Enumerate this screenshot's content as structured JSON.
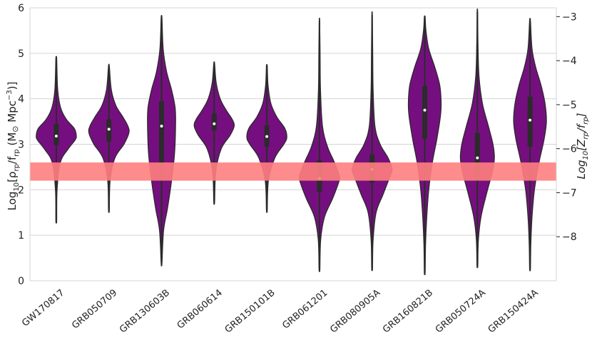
{
  "chart_data": {
    "type": "violin",
    "categories": [
      "GW170817",
      "GRB050709",
      "GRB130603B",
      "GRB060614",
      "GRB150101B",
      "GRB061201",
      "GRB080905A",
      "GRB160821B",
      "GRB050724A",
      "GRB150424A"
    ],
    "series": [
      {
        "name": "GW170817",
        "min": 1.32,
        "max": 4.88,
        "q1": 2.98,
        "median": 3.18,
        "q3": 3.45,
        "profile": [
          [
            1.32,
            0.02
          ],
          [
            2.0,
            0.04
          ],
          [
            2.6,
            0.2
          ],
          [
            2.9,
            0.6
          ],
          [
            3.1,
            0.95
          ],
          [
            3.2,
            1.0
          ],
          [
            3.35,
            0.9
          ],
          [
            3.55,
            0.5
          ],
          [
            3.8,
            0.22
          ],
          [
            4.2,
            0.07
          ],
          [
            4.88,
            0.02
          ]
        ]
      },
      {
        "name": "GRB050709",
        "min": 1.55,
        "max": 4.72,
        "q1": 3.05,
        "median": 3.33,
        "q3": 3.55,
        "profile": [
          [
            1.55,
            0.02
          ],
          [
            2.2,
            0.06
          ],
          [
            2.7,
            0.3
          ],
          [
            3.0,
            0.75
          ],
          [
            3.25,
            1.0
          ],
          [
            3.4,
            0.95
          ],
          [
            3.6,
            0.7
          ],
          [
            3.85,
            0.35
          ],
          [
            4.2,
            0.12
          ],
          [
            4.72,
            0.02
          ]
        ]
      },
      {
        "name": "GRB130603B",
        "min": 0.38,
        "max": 5.78,
        "q1": 2.6,
        "median": 3.4,
        "q3": 3.95,
        "profile": [
          [
            0.38,
            0.02
          ],
          [
            1.1,
            0.1
          ],
          [
            1.6,
            0.3
          ],
          [
            2.2,
            0.5
          ],
          [
            2.8,
            0.65
          ],
          [
            3.4,
            0.7
          ],
          [
            3.8,
            0.68
          ],
          [
            4.2,
            0.5
          ],
          [
            4.6,
            0.25
          ],
          [
            5.1,
            0.08
          ],
          [
            5.78,
            0.02
          ]
        ]
      },
      {
        "name": "GRB060614",
        "min": 1.73,
        "max": 4.78,
        "q1": 3.3,
        "median": 3.45,
        "q3": 3.68,
        "profile": [
          [
            1.73,
            0.02
          ],
          [
            2.4,
            0.08
          ],
          [
            2.9,
            0.35
          ],
          [
            3.2,
            0.8
          ],
          [
            3.4,
            1.0
          ],
          [
            3.55,
            0.9
          ],
          [
            3.75,
            0.6
          ],
          [
            4.0,
            0.3
          ],
          [
            4.35,
            0.1
          ],
          [
            4.78,
            0.02
          ]
        ]
      },
      {
        "name": "GRB150101B",
        "min": 1.55,
        "max": 4.72,
        "q1": 2.95,
        "median": 3.17,
        "q3": 3.42,
        "profile": [
          [
            1.55,
            0.02
          ],
          [
            2.2,
            0.08
          ],
          [
            2.7,
            0.4
          ],
          [
            3.0,
            0.85
          ],
          [
            3.15,
            1.0
          ],
          [
            3.35,
            0.9
          ],
          [
            3.6,
            0.5
          ],
          [
            3.9,
            0.2
          ],
          [
            4.3,
            0.06
          ],
          [
            4.72,
            0.02
          ]
        ]
      },
      {
        "name": "GRB061201",
        "min": 0.25,
        "max": 5.72,
        "q1": 1.95,
        "median": 2.25,
        "q3": 2.65,
        "profile": [
          [
            0.25,
            0.02
          ],
          [
            0.9,
            0.06
          ],
          [
            1.4,
            0.25
          ],
          [
            1.8,
            0.65
          ],
          [
            2.15,
            0.95
          ],
          [
            2.3,
            1.0
          ],
          [
            2.6,
            0.75
          ],
          [
            2.95,
            0.4
          ],
          [
            3.4,
            0.15
          ],
          [
            4.2,
            0.05
          ],
          [
            5.0,
            0.03
          ],
          [
            5.72,
            0.01
          ]
        ]
      },
      {
        "name": "GRB080905A",
        "min": 0.27,
        "max": 5.85,
        "q1": 2.15,
        "median": 2.45,
        "q3": 2.78,
        "profile": [
          [
            0.27,
            0.02
          ],
          [
            0.9,
            0.05
          ],
          [
            1.5,
            0.2
          ],
          [
            1.9,
            0.55
          ],
          [
            2.3,
            0.9
          ],
          [
            2.45,
            1.0
          ],
          [
            2.7,
            0.8
          ],
          [
            3.0,
            0.4
          ],
          [
            3.4,
            0.14
          ],
          [
            4.2,
            0.05
          ],
          [
            5.0,
            0.03
          ],
          [
            5.85,
            0.01
          ]
        ]
      },
      {
        "name": "GRB160821B",
        "min": 0.18,
        "max": 5.8,
        "q1": 3.12,
        "median": 3.75,
        "q3": 4.28,
        "profile": [
          [
            0.18,
            0.02
          ],
          [
            0.8,
            0.04
          ],
          [
            1.4,
            0.1
          ],
          [
            2.0,
            0.2
          ],
          [
            2.6,
            0.38
          ],
          [
            3.1,
            0.6
          ],
          [
            3.6,
            0.78
          ],
          [
            3.9,
            0.82
          ],
          [
            4.3,
            0.75
          ],
          [
            4.7,
            0.5
          ],
          [
            5.1,
            0.2
          ],
          [
            5.5,
            0.06
          ],
          [
            5.8,
            0.02
          ]
        ]
      },
      {
        "name": "GRB050724A",
        "min": 0.33,
        "max": 5.92,
        "q1": 2.2,
        "median": 2.7,
        "q3": 3.25,
        "profile": [
          [
            0.33,
            0.02
          ],
          [
            0.9,
            0.05
          ],
          [
            1.4,
            0.18
          ],
          [
            1.9,
            0.45
          ],
          [
            2.4,
            0.75
          ],
          [
            2.7,
            0.85
          ],
          [
            3.0,
            0.78
          ],
          [
            3.4,
            0.55
          ],
          [
            3.9,
            0.25
          ],
          [
            4.5,
            0.08
          ],
          [
            5.2,
            0.03
          ],
          [
            5.92,
            0.01
          ]
        ]
      },
      {
        "name": "GRB150424A",
        "min": 0.26,
        "max": 5.72,
        "q1": 2.95,
        "median": 3.53,
        "q3": 4.05,
        "profile": [
          [
            0.26,
            0.02
          ],
          [
            0.8,
            0.04
          ],
          [
            1.4,
            0.1
          ],
          [
            2.0,
            0.22
          ],
          [
            2.6,
            0.45
          ],
          [
            3.1,
            0.7
          ],
          [
            3.5,
            0.82
          ],
          [
            3.9,
            0.75
          ],
          [
            4.3,
            0.55
          ],
          [
            4.7,
            0.28
          ],
          [
            5.1,
            0.1
          ],
          [
            5.72,
            0.02
          ]
        ]
      }
    ],
    "band": {
      "ymin": 2.2,
      "ymax": 2.6,
      "color": "#ff7f7f"
    },
    "ylim": [
      0,
      6
    ],
    "yticks": [
      0,
      1,
      2,
      3,
      4,
      5,
      6
    ],
    "ylabel_left": "Log10[ρrp/frp   (M⊙ Mpc−3)]",
    "ylabel_right": "Log10[Zrp/frp]",
    "y2lim": [
      -9.0,
      -2.8
    ],
    "y2ticks": [
      -8,
      -7,
      -6,
      -5,
      -4,
      -3
    ],
    "grid": true,
    "violin_color": "#750f7f",
    "edge_color": "#2a2a2a"
  }
}
